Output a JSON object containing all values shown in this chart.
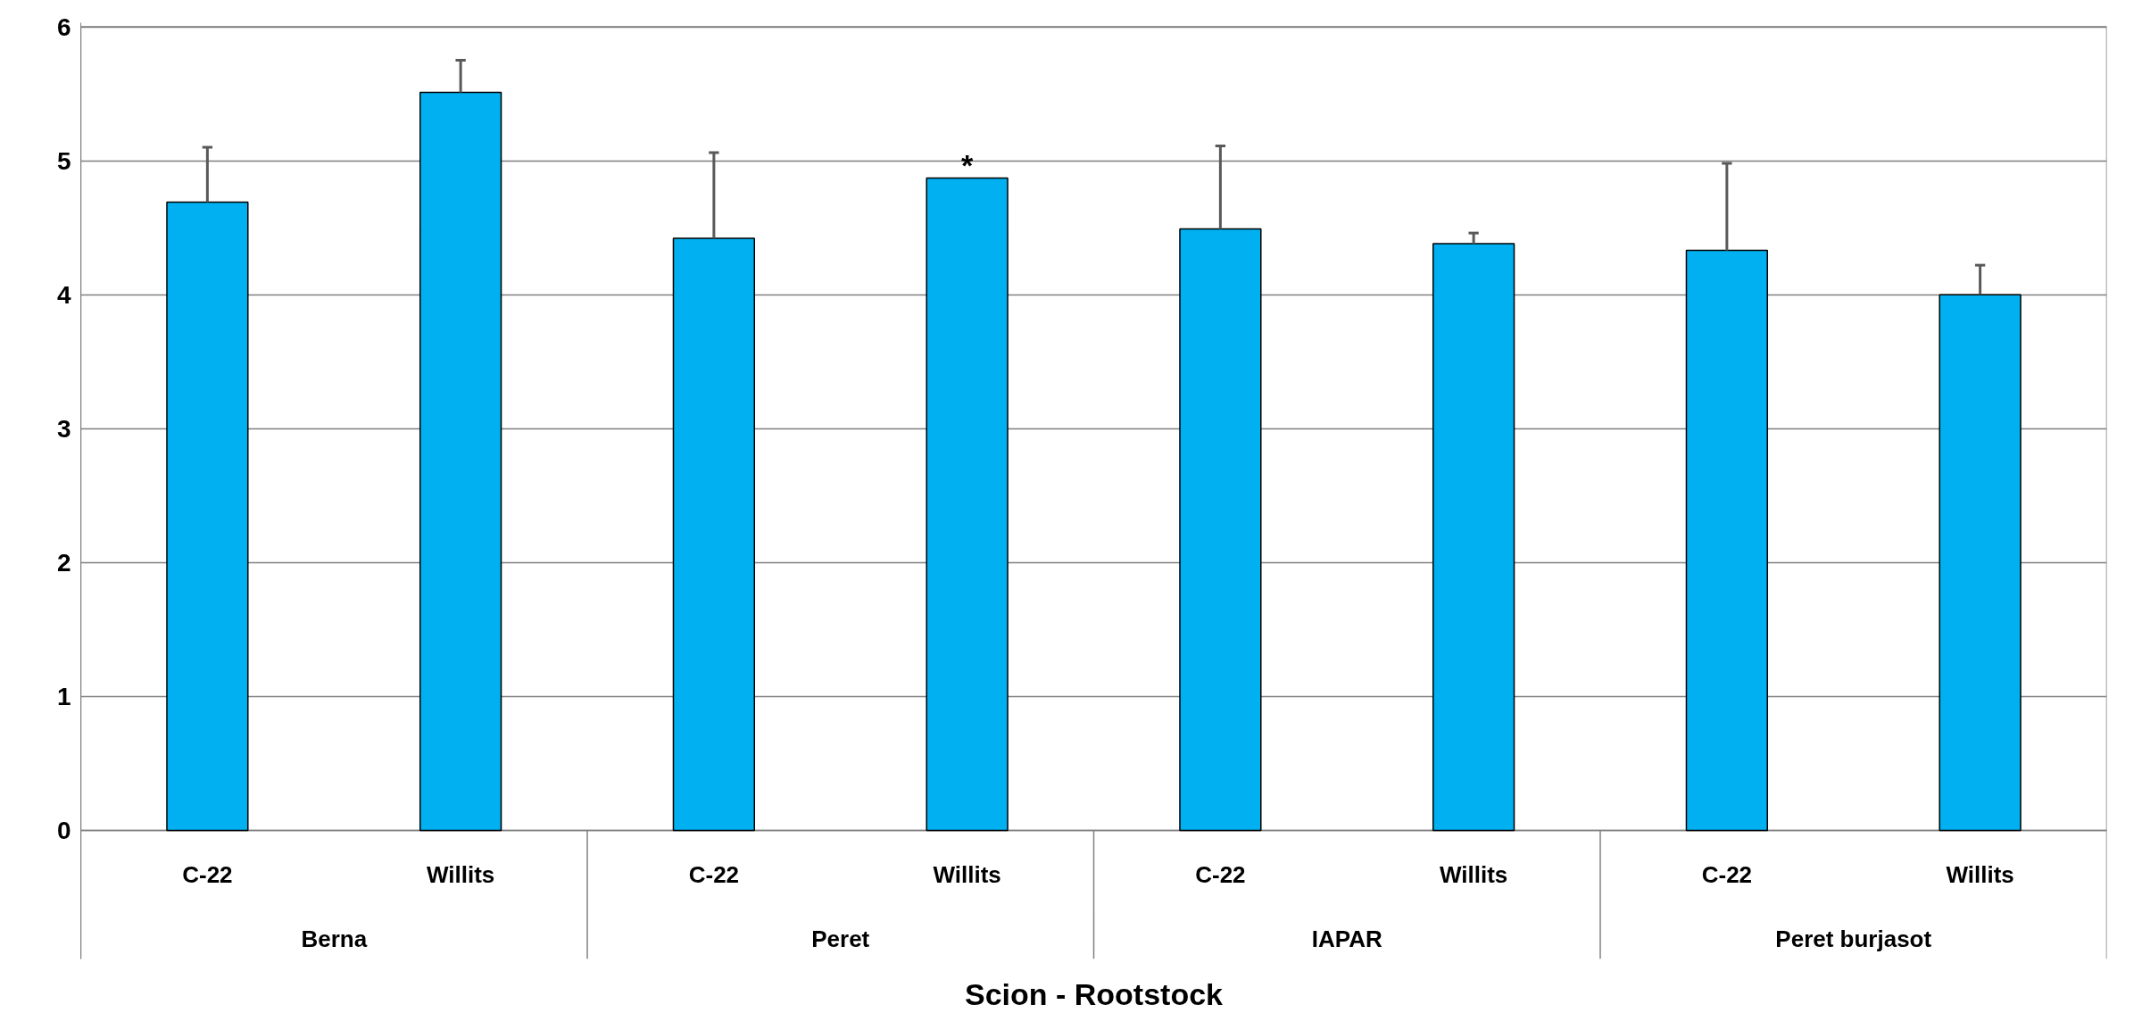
{
  "chart_data": {
    "type": "bar",
    "xlabel": "Scion - Rootstock",
    "categories": [
      "C-22",
      "Willits",
      "C-22",
      "Willits",
      "C-22",
      "Willits",
      "C-22",
      "Willits"
    ],
    "values": [
      4.69,
      5.51,
      4.42,
      4.87,
      4.49,
      4.38,
      4.33,
      4.0
    ],
    "errors": [
      [
        4.69,
        5.1
      ],
      [
        5.51,
        5.75
      ],
      [
        4.42,
        5.06
      ],
      null,
      [
        4.49,
        5.11
      ],
      [
        4.38,
        4.46
      ],
      [
        4.33,
        4.98
      ],
      [
        4.0,
        4.22
      ]
    ],
    "color": "#00b0f0",
    "annotations": [
      "Berna",
      "Peret",
      "IAPAR",
      "Peret burjasot",
      {
        "text": "*",
        "y": 4.87
      }
    ],
    "ylim": [
      0,
      6
    ],
    "yticks": [
      0,
      1,
      2,
      3,
      4,
      5,
      6
    ],
    "grid": "y"
  }
}
